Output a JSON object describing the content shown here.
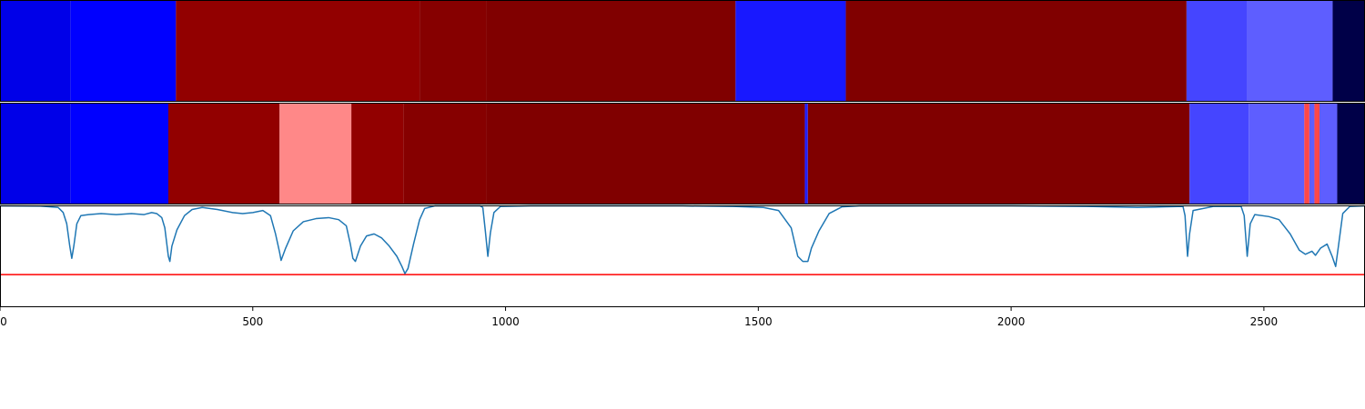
{
  "chart_data": {
    "type": "heatmap",
    "title": "",
    "xlabel": "",
    "ylabel": "",
    "xlim": [
      0,
      2700
    ],
    "x_ticks": [
      0,
      500,
      1000,
      1500,
      2000,
      2500
    ],
    "x_tick_labels": [
      "0",
      "500",
      "1000",
      "1500",
      "2000",
      "2500"
    ],
    "grid": false,
    "legend": "none",
    "strips": [
      {
        "segments": [
          {
            "start": 0,
            "end": 140,
            "color": "#0000e8"
          },
          {
            "start": 140,
            "end": 348,
            "color": "#0000ff"
          },
          {
            "start": 348,
            "end": 830,
            "color": "#920000"
          },
          {
            "start": 830,
            "end": 962,
            "color": "#860000"
          },
          {
            "start": 962,
            "end": 1455,
            "color": "#800000"
          },
          {
            "start": 1455,
            "end": 1673,
            "color": "#1818ff"
          },
          {
            "start": 1673,
            "end": 2347,
            "color": "#800000"
          },
          {
            "start": 2347,
            "end": 2466,
            "color": "#4545ff"
          },
          {
            "start": 2466,
            "end": 2636,
            "color": "#5e5eff"
          },
          {
            "start": 2636,
            "end": 2700,
            "color": "#000048"
          }
        ]
      },
      {
        "segments": [
          {
            "start": 0,
            "end": 140,
            "color": "#0000e8"
          },
          {
            "start": 140,
            "end": 333,
            "color": "#0000ff"
          },
          {
            "start": 333,
            "end": 553,
            "color": "#920000"
          },
          {
            "start": 553,
            "end": 695,
            "color": "#ff8888"
          },
          {
            "start": 695,
            "end": 798,
            "color": "#920000"
          },
          {
            "start": 798,
            "end": 962,
            "color": "#860000"
          },
          {
            "start": 962,
            "end": 1592,
            "color": "#800000"
          },
          {
            "start": 1592,
            "end": 1598,
            "color": "#2020ff"
          },
          {
            "start": 1598,
            "end": 2353,
            "color": "#800000"
          },
          {
            "start": 2353,
            "end": 2470,
            "color": "#4545ff"
          },
          {
            "start": 2470,
            "end": 2580,
            "color": "#5e5eff"
          },
          {
            "start": 2580,
            "end": 2590,
            "color": "#ff4848"
          },
          {
            "start": 2590,
            "end": 2600,
            "color": "#5e5eff"
          },
          {
            "start": 2600,
            "end": 2610,
            "color": "#ff4848"
          },
          {
            "start": 2610,
            "end": 2645,
            "color": "#5e5eff"
          },
          {
            "start": 2645,
            "end": 2700,
            "color": "#000048"
          }
        ]
      }
    ],
    "line_plot": {
      "ylim": [
        0,
        1
      ],
      "threshold": 0.32,
      "threshold_color": "#ff0000",
      "line_color": "#1f77b4",
      "points": [
        [
          0,
          0.995
        ],
        [
          80,
          0.993
        ],
        [
          115,
          0.98
        ],
        [
          125,
          0.93
        ],
        [
          132,
          0.82
        ],
        [
          138,
          0.6
        ],
        [
          142,
          0.48
        ],
        [
          146,
          0.6
        ],
        [
          152,
          0.82
        ],
        [
          160,
          0.9
        ],
        [
          175,
          0.91
        ],
        [
          200,
          0.92
        ],
        [
          230,
          0.91
        ],
        [
          260,
          0.92
        ],
        [
          285,
          0.91
        ],
        [
          300,
          0.93
        ],
        [
          310,
          0.92
        ],
        [
          320,
          0.88
        ],
        [
          326,
          0.78
        ],
        [
          330,
          0.62
        ],
        [
          333,
          0.5
        ],
        [
          336,
          0.45
        ],
        [
          340,
          0.6
        ],
        [
          350,
          0.76
        ],
        [
          365,
          0.9
        ],
        [
          380,
          0.96
        ],
        [
          400,
          0.98
        ],
        [
          430,
          0.96
        ],
        [
          460,
          0.93
        ],
        [
          480,
          0.92
        ],
        [
          500,
          0.93
        ],
        [
          520,
          0.95
        ],
        [
          535,
          0.9
        ],
        [
          545,
          0.72
        ],
        [
          553,
          0.54
        ],
        [
          556,
          0.46
        ],
        [
          565,
          0.58
        ],
        [
          580,
          0.75
        ],
        [
          600,
          0.84
        ],
        [
          625,
          0.87
        ],
        [
          650,
          0.88
        ],
        [
          670,
          0.86
        ],
        [
          685,
          0.8
        ],
        [
          693,
          0.62
        ],
        [
          698,
          0.48
        ],
        [
          703,
          0.45
        ],
        [
          713,
          0.6
        ],
        [
          725,
          0.7
        ],
        [
          740,
          0.72
        ],
        [
          755,
          0.68
        ],
        [
          770,
          0.6
        ],
        [
          785,
          0.5
        ],
        [
          795,
          0.4
        ],
        [
          801,
          0.33
        ],
        [
          807,
          0.38
        ],
        [
          818,
          0.62
        ],
        [
          830,
          0.86
        ],
        [
          840,
          0.97
        ],
        [
          860,
          0.995
        ],
        [
          950,
          0.995
        ],
        [
          955,
          0.98
        ],
        [
          960,
          0.75
        ],
        [
          965,
          0.5
        ],
        [
          970,
          0.73
        ],
        [
          977,
          0.93
        ],
        [
          990,
          0.99
        ],
        [
          1050,
          0.995
        ],
        [
          1200,
          0.995
        ],
        [
          1350,
          0.995
        ],
        [
          1450,
          0.99
        ],
        [
          1510,
          0.98
        ],
        [
          1540,
          0.95
        ],
        [
          1565,
          0.78
        ],
        [
          1578,
          0.5
        ],
        [
          1588,
          0.45
        ],
        [
          1598,
          0.45
        ],
        [
          1605,
          0.58
        ],
        [
          1620,
          0.75
        ],
        [
          1640,
          0.92
        ],
        [
          1665,
          0.985
        ],
        [
          1700,
          0.995
        ],
        [
          1850,
          0.995
        ],
        [
          2000,
          0.995
        ],
        [
          2150,
          0.99
        ],
        [
          2250,
          0.98
        ],
        [
          2300,
          0.985
        ],
        [
          2340,
          0.99
        ],
        [
          2344,
          0.9
        ],
        [
          2349,
          0.5
        ],
        [
          2353,
          0.72
        ],
        [
          2360,
          0.95
        ],
        [
          2400,
          0.99
        ],
        [
          2455,
          0.99
        ],
        [
          2461,
          0.9
        ],
        [
          2467,
          0.5
        ],
        [
          2473,
          0.82
        ],
        [
          2482,
          0.91
        ],
        [
          2510,
          0.89
        ],
        [
          2530,
          0.86
        ],
        [
          2552,
          0.72
        ],
        [
          2570,
          0.56
        ],
        [
          2582,
          0.52
        ],
        [
          2595,
          0.55
        ],
        [
          2602,
          0.51
        ],
        [
          2612,
          0.58
        ],
        [
          2625,
          0.62
        ],
        [
          2635,
          0.5
        ],
        [
          2642,
          0.4
        ],
        [
          2648,
          0.62
        ],
        [
          2656,
          0.92
        ],
        [
          2670,
          0.99
        ],
        [
          2700,
          0.995
        ]
      ]
    }
  }
}
